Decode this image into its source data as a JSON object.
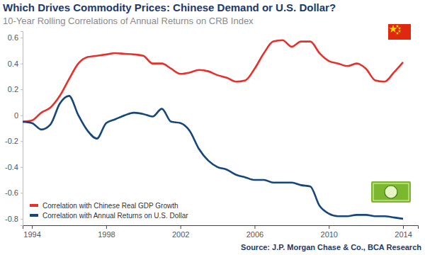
{
  "chart_data": {
    "type": "line",
    "title": "Which Drives Commodity Prices: Chinese Demand or U.S. Dollar?",
    "subtitle": "10-Year Rolling Correlations of Annual Returns on CRB Index",
    "source": "Source: J.P. Morgan Chase & Co., BCA Research",
    "x": [
      1993.5,
      1994,
      1994.5,
      1995,
      1995.5,
      1996,
      1996.5,
      1997,
      1997.5,
      1998,
      1998.5,
      1999,
      1999.5,
      2000,
      2000.5,
      2001,
      2001.5,
      2002,
      2002.5,
      2003,
      2003.5,
      2004,
      2004.5,
      2005,
      2005.5,
      2006,
      2006.5,
      2007,
      2007.5,
      2008,
      2008.5,
      2009,
      2009.5,
      2010,
      2010.5,
      2011,
      2011.5,
      2012,
      2012.5,
      2013,
      2013.5,
      2014
    ],
    "series": [
      {
        "name": "Correlation with Chinese Real GDP Growth",
        "color": "#e8302a",
        "values": [
          -0.05,
          -0.04,
          0.02,
          0.06,
          0.15,
          0.28,
          0.4,
          0.45,
          0.46,
          0.47,
          0.48,
          0.475,
          0.47,
          0.46,
          0.4,
          0.4,
          0.36,
          0.32,
          0.33,
          0.35,
          0.34,
          0.31,
          0.29,
          0.26,
          0.27,
          0.36,
          0.48,
          0.57,
          0.58,
          0.53,
          0.57,
          0.57,
          0.48,
          0.42,
          0.4,
          0.38,
          0.4,
          0.36,
          0.27,
          0.26,
          0.33,
          0.41
        ]
      },
      {
        "name": "Correlation with Annual Returns on U.S. Dollar",
        "color": "#15467c",
        "values": [
          -0.05,
          -0.06,
          -0.11,
          -0.07,
          0.09,
          0.15,
          0.0,
          -0.12,
          -0.18,
          -0.06,
          -0.03,
          0.0,
          0.02,
          0.01,
          -0.01,
          0.05,
          -0.05,
          -0.06,
          -0.12,
          -0.26,
          -0.35,
          -0.4,
          -0.42,
          -0.46,
          -0.48,
          -0.5,
          -0.5,
          -0.52,
          -0.52,
          -0.52,
          -0.54,
          -0.55,
          -0.7,
          -0.76,
          -0.78,
          -0.78,
          -0.77,
          -0.77,
          -0.78,
          -0.78,
          -0.79,
          -0.8
        ]
      }
    ],
    "xlim": [
      1993.5,
      2014.8
    ],
    "xticks": [
      1994,
      1998,
      2002,
      2006,
      2010,
      2014
    ],
    "ylim": [
      -0.85,
      0.65
    ],
    "yticks": [
      -0.8,
      -0.6,
      -0.4,
      -0.2,
      0,
      0.2,
      0.4,
      0.6
    ],
    "grid": false,
    "legend": "lower left"
  }
}
